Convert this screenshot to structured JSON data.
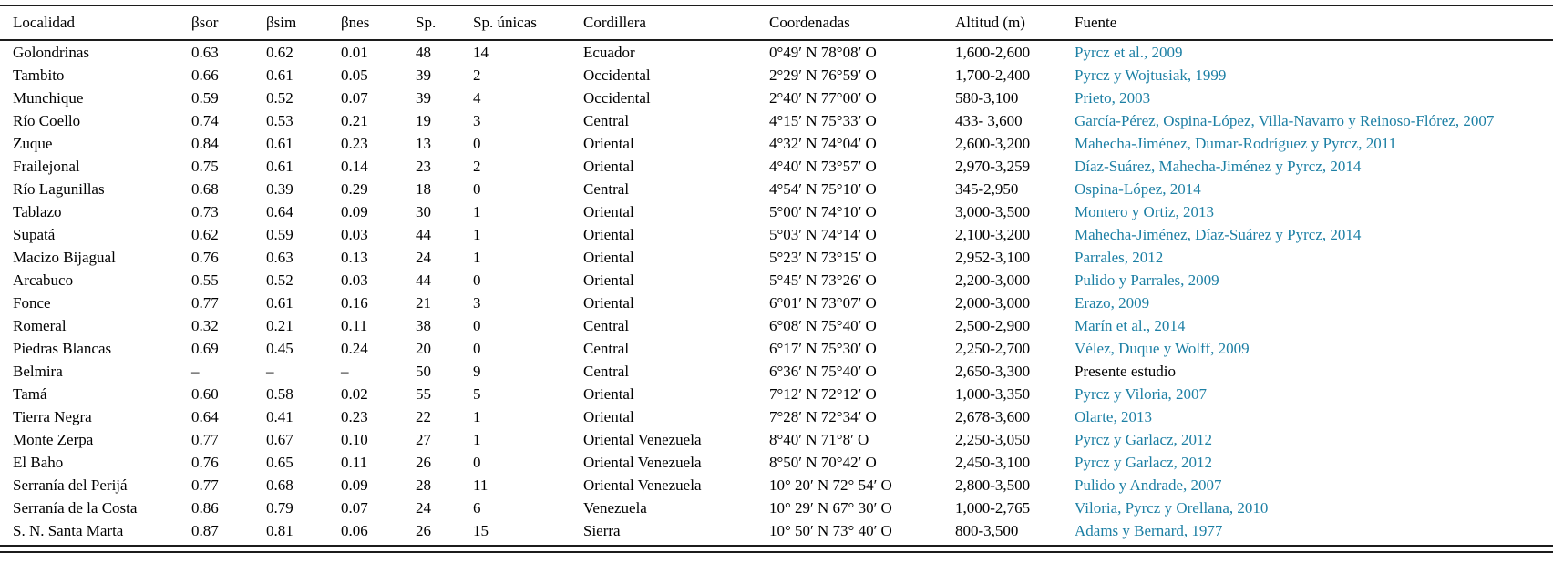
{
  "colors": {
    "link": "#1c7fa4",
    "text": "#000000",
    "rule": "#1c1c1c"
  },
  "table": {
    "columns": [
      {
        "key": "localidad",
        "label": "Localidad"
      },
      {
        "key": "bsor",
        "label": "βsor"
      },
      {
        "key": "bsim",
        "label": "βsim"
      },
      {
        "key": "bnes",
        "label": "βnes"
      },
      {
        "key": "sp",
        "label": "Sp."
      },
      {
        "key": "sp_unicas",
        "label": "Sp. únicas"
      },
      {
        "key": "cordillera",
        "label": "Cordillera"
      },
      {
        "key": "coordenadas",
        "label": "Coordenadas"
      },
      {
        "key": "altitud",
        "label": "Altitud (m)"
      },
      {
        "key": "fuente",
        "label": "Fuente"
      }
    ],
    "rows": [
      {
        "localidad": "Golondrinas",
        "bsor": "0.63",
        "bsim": "0.62",
        "bnes": "0.01",
        "sp": "48",
        "sp_unicas": "14",
        "cordillera": "Ecuador",
        "coordenadas": "0°49′ N 78°08′ O",
        "altitud": "1,600-2,600",
        "fuente": "Pyrcz et al., 2009",
        "fuente_is_link": true
      },
      {
        "localidad": "Tambito",
        "bsor": "0.66",
        "bsim": "0.61",
        "bnes": "0.05",
        "sp": "39",
        "sp_unicas": "2",
        "cordillera": "Occidental",
        "coordenadas": "2°29′ N 76°59′ O",
        "altitud": "1,700-2,400",
        "fuente": "Pyrcz y Wojtusiak, 1999",
        "fuente_is_link": true
      },
      {
        "localidad": "Munchique",
        "bsor": "0.59",
        "bsim": "0.52",
        "bnes": "0.07",
        "sp": "39",
        "sp_unicas": "4",
        "cordillera": "Occidental",
        "coordenadas": "2°40′ N 77°00′ O",
        "altitud": "580-3,100",
        "fuente": "Prieto, 2003",
        "fuente_is_link": true
      },
      {
        "localidad": "Río Coello",
        "bsor": "0.74",
        "bsim": "0.53",
        "bnes": "0.21",
        "sp": "19",
        "sp_unicas": "3",
        "cordillera": "Central",
        "coordenadas": "4°15′ N 75°33′ O",
        "altitud": "433- 3,600",
        "fuente": "García-Pérez, Ospina-López, Villa-Navarro y Reinoso-Flórez, 2007",
        "fuente_is_link": true
      },
      {
        "localidad": "Zuque",
        "bsor": "0.84",
        "bsim": "0.61",
        "bnes": "0.23",
        "sp": "13",
        "sp_unicas": "0",
        "cordillera": "Oriental",
        "coordenadas": "4°32′ N 74°04′ O",
        "altitud": "2,600-3,200",
        "fuente": "Mahecha-Jiménez, Dumar-Rodríguez y Pyrcz, 2011",
        "fuente_is_link": true
      },
      {
        "localidad": "Frailejonal",
        "bsor": "0.75",
        "bsim": "0.61",
        "bnes": "0.14",
        "sp": "23",
        "sp_unicas": "2",
        "cordillera": "Oriental",
        "coordenadas": "4°40′ N 73°57′ O",
        "altitud": "2,970-3,259",
        "fuente": "Díaz-Suárez, Mahecha-Jiménez y Pyrcz, 2014",
        "fuente_is_link": true
      },
      {
        "localidad": "Río Lagunillas",
        "bsor": "0.68",
        "bsim": "0.39",
        "bnes": "0.29",
        "sp": "18",
        "sp_unicas": "0",
        "cordillera": "Central",
        "coordenadas": "4°54′ N 75°10′ O",
        "altitud": "345-2,950",
        "fuente": "Ospina-López, 2014",
        "fuente_is_link": true
      },
      {
        "localidad": "Tablazo",
        "bsor": "0.73",
        "bsim": "0.64",
        "bnes": "0.09",
        "sp": "30",
        "sp_unicas": "1",
        "cordillera": "Oriental",
        "coordenadas": "5°00′ N 74°10′ O",
        "altitud": "3,000-3,500",
        "fuente": "Montero y Ortiz, 2013",
        "fuente_is_link": true
      },
      {
        "localidad": "Supatá",
        "bsor": "0.62",
        "bsim": "0.59",
        "bnes": "0.03",
        "sp": "44",
        "sp_unicas": "1",
        "cordillera": "Oriental",
        "coordenadas": "5°03′ N 74°14′ O",
        "altitud": "2,100-3,200",
        "fuente": "Mahecha-Jiménez, Díaz-Suárez y Pyrcz, 2014",
        "fuente_is_link": true
      },
      {
        "localidad": "Macizo Bijagual",
        "bsor": "0.76",
        "bsim": "0.63",
        "bnes": "0.13",
        "sp": "24",
        "sp_unicas": "1",
        "cordillera": "Oriental",
        "coordenadas": "5°23′ N 73°15′ O",
        "altitud": "2,952-3,100",
        "fuente": "Parrales, 2012",
        "fuente_is_link": true
      },
      {
        "localidad": "Arcabuco",
        "bsor": "0.55",
        "bsim": "0.52",
        "bnes": "0.03",
        "sp": "44",
        "sp_unicas": "0",
        "cordillera": "Oriental",
        "coordenadas": "5°45′ N 73°26′ O",
        "altitud": "2,200-3,000",
        "fuente": "Pulido y Parrales, 2009",
        "fuente_is_link": true
      },
      {
        "localidad": "Fonce",
        "bsor": "0.77",
        "bsim": "0.61",
        "bnes": "0.16",
        "sp": "21",
        "sp_unicas": "3",
        "cordillera": "Oriental",
        "coordenadas": "6°01′ N 73°07′ O",
        "altitud": "2,000-3,000",
        "fuente": "Erazo, 2009",
        "fuente_is_link": true
      },
      {
        "localidad": "Romeral",
        "bsor": "0.32",
        "bsim": "0.21",
        "bnes": "0.11",
        "sp": "38",
        "sp_unicas": "0",
        "cordillera": "Central",
        "coordenadas": "6°08′ N 75°40′ O",
        "altitud": "2,500-2,900",
        "fuente": "Marín et al., 2014",
        "fuente_is_link": true
      },
      {
        "localidad": "Piedras Blancas",
        "bsor": "0.69",
        "bsim": "0.45",
        "bnes": "0.24",
        "sp": "20",
        "sp_unicas": "0",
        "cordillera": "Central",
        "coordenadas": "6°17′ N 75°30′ O",
        "altitud": "2,250-2,700",
        "fuente": "Vélez, Duque y Wolff, 2009",
        "fuente_is_link": true
      },
      {
        "localidad": "Belmira",
        "bsor": "–",
        "bsim": "–",
        "bnes": "–",
        "sp": "50",
        "sp_unicas": "9",
        "cordillera": "Central",
        "coordenadas": "6°36′ N 75°40′ O",
        "altitud": "2,650-3,300",
        "fuente": "Presente estudio",
        "fuente_is_link": false
      },
      {
        "localidad": "Tamá",
        "bsor": "0.60",
        "bsim": "0.58",
        "bnes": "0.02",
        "sp": "55",
        "sp_unicas": "5",
        "cordillera": "Oriental",
        "coordenadas": "7°12′ N 72°12′ O",
        "altitud": "1,000-3,350",
        "fuente": "Pyrcz y Viloria, 2007",
        "fuente_is_link": true
      },
      {
        "localidad": "Tierra Negra",
        "bsor": "0.64",
        "bsim": "0.41",
        "bnes": "0.23",
        "sp": "22",
        "sp_unicas": "1",
        "cordillera": "Oriental",
        "coordenadas": "7°28′ N 72°34′ O",
        "altitud": "2,678-3,600",
        "fuente": "Olarte, 2013",
        "fuente_is_link": true
      },
      {
        "localidad": "Monte Zerpa",
        "bsor": "0.77",
        "bsim": "0.67",
        "bnes": "0.10",
        "sp": "27",
        "sp_unicas": "1",
        "cordillera": "Oriental Venezuela",
        "coordenadas": "8°40′ N 71°8′ O",
        "altitud": "2,250-3,050",
        "fuente": "Pyrcz y Garlacz, 2012",
        "fuente_is_link": true
      },
      {
        "localidad": "El Baho",
        "bsor": "0.76",
        "bsim": "0.65",
        "bnes": "0.11",
        "sp": "26",
        "sp_unicas": "0",
        "cordillera": "Oriental Venezuela",
        "coordenadas": "8°50′ N 70°42′ O",
        "altitud": "2,450-3,100",
        "fuente": "Pyrcz y Garlacz, 2012",
        "fuente_is_link": true
      },
      {
        "localidad": "Serranía del Perijá",
        "bsor": "0.77",
        "bsim": "0.68",
        "bnes": "0.09",
        "sp": "28",
        "sp_unicas": "11",
        "cordillera": "Oriental Venezuela",
        "coordenadas": "10° 20′ N 72° 54′ O",
        "altitud": "2,800-3,500",
        "fuente": "Pulido y Andrade, 2007",
        "fuente_is_link": true
      },
      {
        "localidad": "Serranía de la Costa",
        "bsor": "0.86",
        "bsim": "0.79",
        "bnes": "0.07",
        "sp": "24",
        "sp_unicas": "6",
        "cordillera": "Venezuela",
        "coordenadas": "10° 29′ N 67° 30′ O",
        "altitud": "1,000-2,765",
        "fuente": "Viloria, Pyrcz y Orellana, 2010",
        "fuente_is_link": true
      },
      {
        "localidad": "S. N. Santa Marta",
        "bsor": "0.87",
        "bsim": "0.81",
        "bnes": "0.06",
        "sp": "26",
        "sp_unicas": "15",
        "cordillera": "Sierra",
        "coordenadas": "10° 50′ N 73° 40′ O",
        "altitud": "800-3,500",
        "fuente": "Adams y Bernard, 1977",
        "fuente_is_link": true
      }
    ]
  }
}
